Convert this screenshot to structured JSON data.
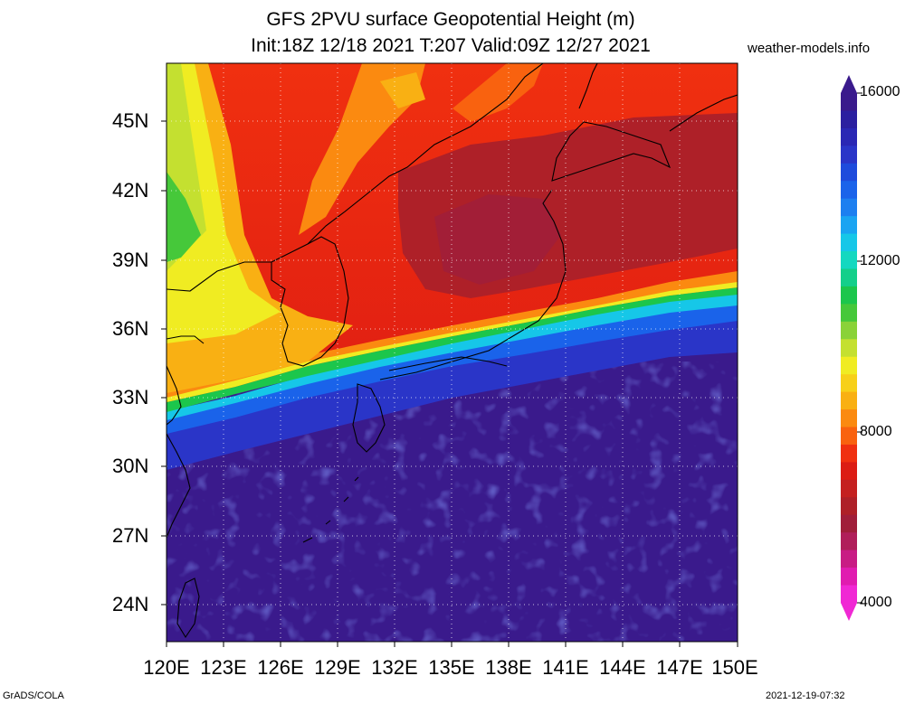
{
  "title": {
    "line1": "GFS 2PVU surface Geopotential Height (m)",
    "line2": "Init:18Z 12/18 2021 T:207 Valid:09Z 12/27 2021"
  },
  "site": "weather-models.info",
  "map": {
    "lat_labels": [
      "45N",
      "42N",
      "39N",
      "36N",
      "33N",
      "30N",
      "27N",
      "24N"
    ],
    "lon_labels": [
      "120E",
      "123E",
      "126E",
      "129E",
      "132E",
      "135E",
      "138E",
      "141E",
      "144E",
      "147E",
      "150E"
    ],
    "lon_range": [
      120,
      150
    ],
    "lat_range": [
      22.5,
      47.5
    ]
  },
  "colorbar": {
    "labels": [
      "16000",
      "12000",
      "8000",
      "4000"
    ],
    "colors_top_to_bottom": [
      "#3a1a8c",
      "#2b1fa0",
      "#2a27b4",
      "#2a35c8",
      "#1e4bdc",
      "#1a63ea",
      "#1d7ff0",
      "#1aa4f2",
      "#16c7e8",
      "#14d8c0",
      "#14cf8a",
      "#1cc64c",
      "#46c83a",
      "#8ad238",
      "#c4e030",
      "#f0ec22",
      "#f7d019",
      "#f9b013",
      "#fb8a10",
      "#f9620f",
      "#f03010",
      "#dc1c14",
      "#c42020",
      "#ae2028",
      "#a01e3a",
      "#b01e5a",
      "#c81c84",
      "#e01cb0",
      "#f028d4"
    ]
  },
  "footer": {
    "left": "GrADS/COLA",
    "right": "2021-12-19-07:32"
  }
}
